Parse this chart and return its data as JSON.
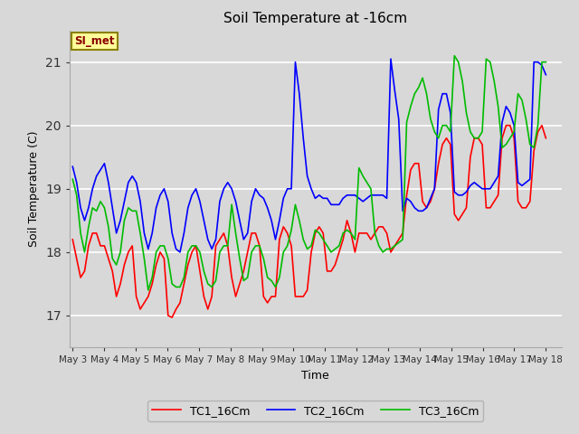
{
  "title": "Soil Temperature at -16cm",
  "xlabel": "Time",
  "ylabel": "Soil Temperature (C)",
  "ylim": [
    16.5,
    21.5
  ],
  "background_color": "#d8d8d8",
  "plot_bg_color": "#d8d8d8",
  "grid_color": "#ffffff",
  "annotation_text": "SI_met",
  "annotation_bg": "#ffff99",
  "annotation_border": "#8B8000",
  "annotation_text_color": "#8B0000",
  "TC1_color": "#ff0000",
  "TC2_color": "#0000ff",
  "TC3_color": "#00bb00",
  "TC1_label": "TC1_16Cm",
  "TC2_label": "TC2_16Cm",
  "TC3_label": "TC3_16Cm",
  "xtick_labels": [
    "May 3",
    "May 4",
    "May 5",
    "May 6",
    "May 7",
    "May 8",
    "May 9",
    "May 10",
    "May 11",
    "May 12",
    "May 13",
    "May 14",
    "May 15",
    "May 16",
    "May 17",
    "May 18"
  ],
  "TC1_data": [
    18.2,
    17.9,
    17.6,
    17.7,
    18.1,
    18.3,
    18.3,
    18.1,
    18.1,
    17.9,
    17.7,
    17.3,
    17.5,
    17.8,
    18.0,
    18.1,
    17.3,
    17.1,
    17.2,
    17.3,
    17.5,
    17.8,
    18.0,
    17.9,
    17.0,
    16.97,
    17.1,
    17.2,
    17.5,
    17.8,
    18.0,
    18.1,
    17.7,
    17.3,
    17.1,
    17.3,
    18.1,
    18.2,
    18.3,
    18.1,
    17.6,
    17.3,
    17.5,
    17.7,
    18.0,
    18.3,
    18.3,
    18.1,
    17.3,
    17.2,
    17.3,
    17.3,
    18.2,
    18.4,
    18.3,
    18.1,
    17.3,
    17.3,
    17.3,
    17.4,
    18.0,
    18.3,
    18.4,
    18.3,
    17.7,
    17.7,
    17.8,
    18.0,
    18.2,
    18.5,
    18.3,
    18.0,
    18.3,
    18.3,
    18.3,
    18.2,
    18.3,
    18.4,
    18.4,
    18.3,
    18.0,
    18.1,
    18.2,
    18.3,
    18.9,
    19.3,
    19.4,
    19.4,
    18.8,
    18.7,
    18.8,
    19.0,
    19.4,
    19.7,
    19.8,
    19.7,
    18.6,
    18.5,
    18.6,
    18.7,
    19.5,
    19.8,
    19.8,
    19.7,
    18.7,
    18.7,
    18.8,
    18.9,
    19.8,
    20.0,
    20.0,
    19.8,
    18.8,
    18.7,
    18.7,
    18.8,
    19.6,
    19.9,
    20.0,
    19.8
  ],
  "TC2_data": [
    19.35,
    19.1,
    18.7,
    18.5,
    18.7,
    19.0,
    19.2,
    19.3,
    19.4,
    19.1,
    18.7,
    18.3,
    18.5,
    18.8,
    19.1,
    19.2,
    19.1,
    18.8,
    18.3,
    18.05,
    18.3,
    18.7,
    18.9,
    19.0,
    18.8,
    18.3,
    18.05,
    18.0,
    18.3,
    18.7,
    18.9,
    19.0,
    18.8,
    18.5,
    18.2,
    18.05,
    18.2,
    18.8,
    19.0,
    19.1,
    19.0,
    18.8,
    18.5,
    18.2,
    18.3,
    18.8,
    19.0,
    18.9,
    18.85,
    18.7,
    18.5,
    18.2,
    18.5,
    18.85,
    19.0,
    19.0,
    21.0,
    20.5,
    19.8,
    19.2,
    19.0,
    18.85,
    18.9,
    18.85,
    18.85,
    18.75,
    18.75,
    18.75,
    18.85,
    18.9,
    18.9,
    18.9,
    18.85,
    18.8,
    18.85,
    18.9,
    18.9,
    18.9,
    18.9,
    18.85,
    21.05,
    20.55,
    20.1,
    18.65,
    18.85,
    18.8,
    18.7,
    18.65,
    18.65,
    18.7,
    18.85,
    19.0,
    20.25,
    20.5,
    20.5,
    20.2,
    18.95,
    18.9,
    18.9,
    18.95,
    19.05,
    19.1,
    19.05,
    19.0,
    19.0,
    19.0,
    19.1,
    19.2,
    20.05,
    20.3,
    20.2,
    20.0,
    19.1,
    19.05,
    19.1,
    19.15,
    21.0,
    21.0,
    20.95,
    20.8
  ],
  "TC3_data": [
    19.15,
    18.9,
    18.3,
    18.0,
    18.4,
    18.7,
    18.65,
    18.8,
    18.7,
    18.4,
    17.9,
    17.8,
    18.0,
    18.5,
    18.7,
    18.65,
    18.65,
    18.3,
    17.9,
    17.4,
    17.6,
    18.0,
    18.1,
    18.1,
    17.9,
    17.5,
    17.45,
    17.45,
    17.6,
    18.0,
    18.1,
    18.1,
    18.0,
    17.7,
    17.5,
    17.45,
    17.55,
    18.0,
    18.1,
    18.1,
    18.75,
    18.3,
    17.9,
    17.55,
    17.6,
    18.0,
    18.1,
    18.1,
    17.9,
    17.6,
    17.55,
    17.45,
    17.6,
    18.0,
    18.1,
    18.35,
    18.75,
    18.5,
    18.2,
    18.05,
    18.1,
    18.35,
    18.3,
    18.2,
    18.1,
    18.0,
    18.05,
    18.1,
    18.3,
    18.35,
    18.3,
    18.2,
    19.33,
    19.2,
    19.1,
    19.0,
    18.3,
    18.1,
    18.0,
    18.05,
    18.05,
    18.1,
    18.15,
    18.2,
    20.05,
    20.3,
    20.5,
    20.6,
    20.75,
    20.5,
    20.1,
    19.9,
    19.8,
    20.0,
    20.0,
    19.9,
    21.1,
    21.0,
    20.7,
    20.2,
    19.9,
    19.8,
    19.8,
    19.9,
    21.05,
    21.0,
    20.7,
    20.3,
    19.65,
    19.7,
    19.8,
    19.9,
    20.5,
    20.4,
    20.1,
    19.7,
    19.65,
    20.0,
    21.0,
    21.0
  ]
}
